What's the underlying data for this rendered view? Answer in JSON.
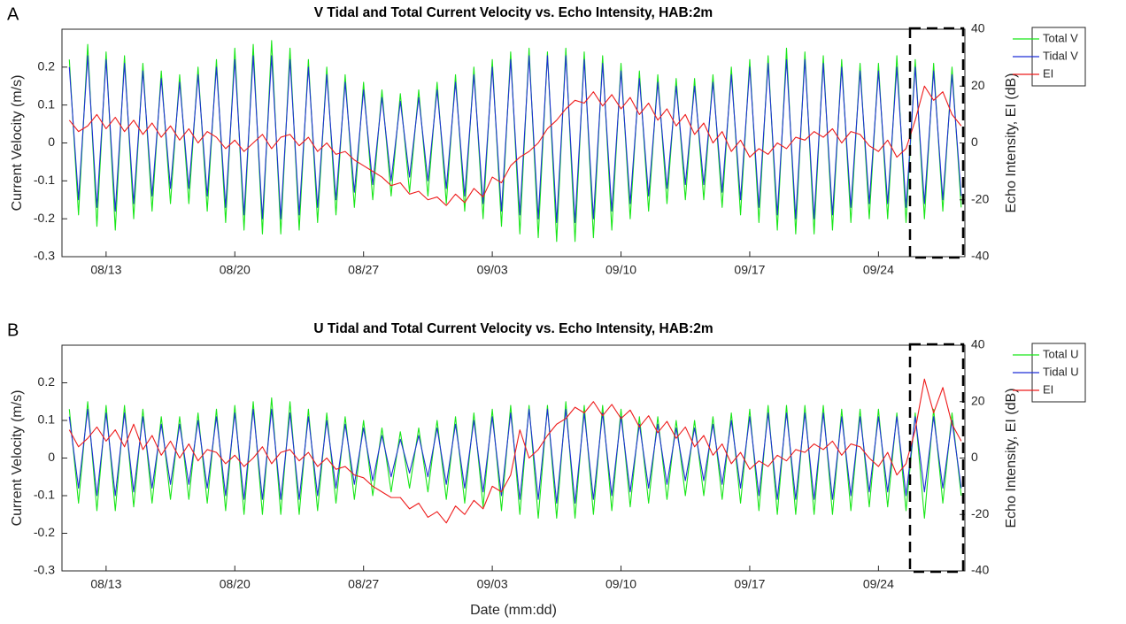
{
  "chart_data": [
    {
      "type": "line",
      "panel": "A",
      "title": "V Tidal and Total Current Velocity vs. Echo Intensity, HAB:2m",
      "ylabel": "Current Velocity (m/s)",
      "y2label": "Echo Intensity, EI (dB)",
      "x": [
        0,
        0.5,
        1,
        1.5,
        2,
        2.5,
        3,
        3.5,
        4,
        4.5,
        5,
        5.5,
        6,
        6.5,
        7,
        7.5,
        8,
        8.5,
        9,
        9.5,
        10,
        10.5,
        11,
        11.5,
        12,
        12.5,
        13,
        13.5,
        14,
        14.5,
        15,
        15.5,
        16,
        16.5,
        17,
        17.5,
        18,
        18.5,
        19,
        19.5,
        20,
        20.5,
        21,
        21.5,
        22,
        22.5,
        23,
        23.5,
        24,
        24.5,
        25,
        25.5,
        26,
        26.5,
        27,
        27.5,
        28,
        28.5,
        29,
        29.5,
        30,
        30.5,
        31,
        31.5,
        32,
        32.5,
        33,
        33.5,
        34,
        34.5,
        35,
        35.5,
        36,
        36.5,
        37,
        37.5,
        38,
        38.5,
        39,
        39.5,
        40,
        40.5,
        41,
        41.5,
        42,
        42.5,
        43,
        43.5,
        44,
        44.5,
        45,
        45.5,
        46,
        46.5,
        47,
        47.5,
        48,
        48.5
      ],
      "xlim": [
        -0.4,
        48.7
      ],
      "xticks": [
        {
          "value": 2,
          "label": "08/13"
        },
        {
          "value": 9,
          "label": "08/20"
        },
        {
          "value": 16,
          "label": "08/27"
        },
        {
          "value": 23,
          "label": "09/03"
        },
        {
          "value": 30,
          "label": "09/10"
        },
        {
          "value": 37,
          "label": "09/17"
        },
        {
          "value": 44,
          "label": "09/24"
        }
      ],
      "ylim": [
        -0.3,
        0.3
      ],
      "yticks": [
        -0.3,
        -0.2,
        -0.1,
        0,
        0.1,
        0.2
      ],
      "y2lim": [
        -40,
        40
      ],
      "y2ticks": [
        -40,
        -20,
        0,
        20,
        40
      ],
      "legend": "outside-right",
      "grid": false,
      "series": [
        {
          "name": "Total V",
          "color": "#19e619",
          "values": [
            0.22,
            -0.19,
            0.26,
            -0.22,
            0.24,
            -0.23,
            0.23,
            -0.2,
            0.21,
            -0.18,
            0.19,
            -0.16,
            0.18,
            -0.16,
            0.2,
            -0.18,
            0.22,
            -0.21,
            0.25,
            -0.23,
            0.26,
            -0.24,
            0.27,
            -0.24,
            0.25,
            -0.23,
            0.22,
            -0.21,
            0.2,
            -0.19,
            0.18,
            -0.17,
            0.16,
            -0.15,
            0.14,
            -0.14,
            0.13,
            -0.13,
            0.14,
            -0.14,
            0.16,
            -0.16,
            0.18,
            -0.18,
            0.2,
            -0.2,
            0.22,
            -0.22,
            0.24,
            -0.24,
            0.25,
            -0.25,
            0.24,
            -0.26,
            0.25,
            -0.26,
            0.24,
            -0.25,
            0.23,
            -0.23,
            0.21,
            -0.2,
            0.19,
            -0.18,
            0.18,
            -0.16,
            0.17,
            -0.15,
            0.17,
            -0.15,
            0.18,
            -0.17,
            0.2,
            -0.19,
            0.22,
            -0.21,
            0.23,
            -0.23,
            0.25,
            -0.24,
            0.24,
            -0.24,
            0.23,
            -0.23,
            0.22,
            -0.21,
            0.21,
            -0.2,
            0.21,
            -0.2,
            0.23,
            -0.21,
            0.22,
            -0.2,
            0.21,
            -0.18,
            0.2,
            -0.17
          ]
        },
        {
          "name": "Tidal V",
          "color": "#1f2fd6",
          "values": [
            0.2,
            -0.15,
            0.23,
            -0.17,
            0.22,
            -0.18,
            0.21,
            -0.16,
            0.19,
            -0.14,
            0.17,
            -0.12,
            0.16,
            -0.12,
            0.18,
            -0.14,
            0.2,
            -0.17,
            0.22,
            -0.19,
            0.23,
            -0.2,
            0.23,
            -0.2,
            0.22,
            -0.19,
            0.2,
            -0.17,
            0.18,
            -0.15,
            0.16,
            -0.13,
            0.14,
            -0.11,
            0.12,
            -0.1,
            0.11,
            -0.09,
            0.12,
            -0.1,
            0.14,
            -0.12,
            0.16,
            -0.14,
            0.18,
            -0.16,
            0.2,
            -0.18,
            0.22,
            -0.19,
            0.23,
            -0.2,
            0.23,
            -0.21,
            0.23,
            -0.21,
            0.22,
            -0.2,
            0.21,
            -0.18,
            0.19,
            -0.16,
            0.17,
            -0.14,
            0.16,
            -0.12,
            0.15,
            -0.11,
            0.15,
            -0.11,
            0.16,
            -0.13,
            0.18,
            -0.15,
            0.2,
            -0.17,
            0.21,
            -0.19,
            0.22,
            -0.2,
            0.22,
            -0.2,
            0.21,
            -0.19,
            0.2,
            -0.17,
            0.19,
            -0.16,
            0.19,
            -0.16,
            0.2,
            -0.17,
            0.2,
            -0.16,
            0.19,
            -0.15,
            0.18,
            -0.14
          ]
        },
        {
          "name": "EI",
          "color": "#ee1c1c",
          "axis": "y2",
          "values": [
            8,
            4,
            6,
            10,
            5,
            9,
            4,
            8,
            3,
            7,
            2,
            6,
            1,
            5,
            0,
            4,
            2,
            -2,
            1,
            -3,
            0,
            3,
            -2,
            2,
            3,
            -1,
            2,
            -3,
            0,
            -4,
            -3,
            -6,
            -8,
            -10,
            -12,
            -15,
            -14,
            -18,
            -17,
            -20,
            -19,
            -22,
            -18,
            -21,
            -16,
            -19,
            -12,
            -14,
            -8,
            -5,
            -3,
            0,
            5,
            8,
            12,
            15,
            14,
            18,
            13,
            17,
            12,
            16,
            10,
            14,
            8,
            12,
            6,
            10,
            3,
            7,
            0,
            4,
            -3,
            1,
            -5,
            -2,
            -4,
            0,
            -2,
            2,
            1,
            4,
            2,
            5,
            0,
            4,
            3,
            -1,
            -3,
            1,
            -5,
            -2,
            8,
            20,
            15,
            18,
            10,
            6
          ]
        }
      ]
    },
    {
      "type": "line",
      "panel": "B",
      "title": "U Tidal and Total Current Velocity vs. Echo Intensity, HAB:2m",
      "xlabel": "Date (mm:dd)",
      "ylabel": "Current Velocity (m/s)",
      "y2label": "Echo Intensity, EI (dB)",
      "x": [
        0,
        0.5,
        1,
        1.5,
        2,
        2.5,
        3,
        3.5,
        4,
        4.5,
        5,
        5.5,
        6,
        6.5,
        7,
        7.5,
        8,
        8.5,
        9,
        9.5,
        10,
        10.5,
        11,
        11.5,
        12,
        12.5,
        13,
        13.5,
        14,
        14.5,
        15,
        15.5,
        16,
        16.5,
        17,
        17.5,
        18,
        18.5,
        19,
        19.5,
        20,
        20.5,
        21,
        21.5,
        22,
        22.5,
        23,
        23.5,
        24,
        24.5,
        25,
        25.5,
        26,
        26.5,
        27,
        27.5,
        28,
        28.5,
        29,
        29.5,
        30,
        30.5,
        31,
        31.5,
        32,
        32.5,
        33,
        33.5,
        34,
        34.5,
        35,
        35.5,
        36,
        36.5,
        37,
        37.5,
        38,
        38.5,
        39,
        39.5,
        40,
        40.5,
        41,
        41.5,
        42,
        42.5,
        43,
        43.5,
        44,
        44.5,
        45,
        45.5,
        46,
        46.5,
        47,
        47.5,
        48,
        48.5
      ],
      "xlim": [
        -0.4,
        48.7
      ],
      "xticks": [
        {
          "value": 2,
          "label": "08/13"
        },
        {
          "value": 9,
          "label": "08/20"
        },
        {
          "value": 16,
          "label": "08/27"
        },
        {
          "value": 23,
          "label": "09/03"
        },
        {
          "value": 30,
          "label": "09/10"
        },
        {
          "value": 37,
          "label": "09/17"
        },
        {
          "value": 44,
          "label": "09/24"
        }
      ],
      "ylim": [
        -0.3,
        0.3
      ],
      "yticks": [
        -0.3,
        -0.2,
        -0.1,
        0,
        0.1,
        0.2
      ],
      "y2lim": [
        -40,
        40
      ],
      "y2ticks": [
        -40,
        -20,
        0,
        20,
        40
      ],
      "legend": "outside-right",
      "grid": false,
      "series": [
        {
          "name": "Total U",
          "color": "#19e619",
          "values": [
            0.13,
            -0.12,
            0.15,
            -0.14,
            0.14,
            -0.14,
            0.14,
            -0.13,
            0.13,
            -0.12,
            0.11,
            -0.11,
            0.11,
            -0.11,
            0.12,
            -0.12,
            0.13,
            -0.14,
            0.14,
            -0.15,
            0.15,
            -0.15,
            0.16,
            -0.15,
            0.15,
            -0.15,
            0.13,
            -0.14,
            0.12,
            -0.12,
            0.11,
            -0.11,
            0.1,
            -0.1,
            0.08,
            -0.09,
            0.07,
            -0.08,
            0.08,
            -0.09,
            0.1,
            -0.11,
            0.11,
            -0.12,
            0.12,
            -0.13,
            0.13,
            -0.14,
            0.14,
            -0.15,
            0.14,
            -0.16,
            0.14,
            -0.16,
            0.15,
            -0.16,
            0.14,
            -0.15,
            0.14,
            -0.14,
            0.13,
            -0.13,
            0.11,
            -0.12,
            0.11,
            -0.11,
            0.1,
            -0.1,
            0.1,
            -0.1,
            0.11,
            -0.11,
            0.12,
            -0.12,
            0.13,
            -0.14,
            0.14,
            -0.15,
            0.14,
            -0.15,
            0.14,
            -0.15,
            0.14,
            -0.15,
            0.13,
            -0.14,
            0.13,
            -0.13,
            0.13,
            -0.13,
            0.12,
            -0.14,
            0.12,
            -0.16,
            0.13,
            -0.12,
            0.12,
            -0.1
          ]
        },
        {
          "name": "Tidal U",
          "color": "#1f2fd6",
          "values": [
            0.11,
            -0.08,
            0.13,
            -0.1,
            0.12,
            -0.1,
            0.12,
            -0.09,
            0.11,
            -0.08,
            0.09,
            -0.07,
            0.09,
            -0.07,
            0.1,
            -0.08,
            0.11,
            -0.1,
            0.12,
            -0.11,
            0.13,
            -0.11,
            0.13,
            -0.11,
            0.12,
            -0.11,
            0.11,
            -0.1,
            0.1,
            -0.08,
            0.09,
            -0.07,
            0.08,
            -0.06,
            0.06,
            -0.05,
            0.05,
            -0.04,
            0.06,
            -0.05,
            0.08,
            -0.07,
            0.09,
            -0.08,
            0.1,
            -0.09,
            0.11,
            -0.1,
            0.12,
            -0.11,
            0.13,
            -0.11,
            0.13,
            -0.12,
            0.13,
            -0.12,
            0.12,
            -0.11,
            0.12,
            -0.1,
            0.11,
            -0.09,
            0.09,
            -0.08,
            0.09,
            -0.07,
            0.08,
            -0.06,
            0.08,
            -0.06,
            0.09,
            -0.07,
            0.1,
            -0.08,
            0.11,
            -0.1,
            0.12,
            -0.11,
            0.12,
            -0.11,
            0.12,
            -0.11,
            0.12,
            -0.11,
            0.11,
            -0.1,
            0.11,
            -0.09,
            0.11,
            -0.09,
            0.11,
            -0.1,
            0.11,
            -0.09,
            0.11,
            -0.08,
            0.1,
            -0.08
          ]
        },
        {
          "name": "EI",
          "color": "#ee1c1c",
          "axis": "y2",
          "values": [
            10,
            4,
            7,
            11,
            6,
            10,
            4,
            12,
            3,
            8,
            1,
            6,
            0,
            5,
            -1,
            3,
            2,
            -2,
            1,
            -3,
            0,
            4,
            -2,
            2,
            3,
            -1,
            2,
            -3,
            0,
            -4,
            -3,
            -6,
            -7,
            -10,
            -12,
            -14,
            -14,
            -18,
            -16,
            -21,
            -19,
            -23,
            -17,
            -20,
            -15,
            -18,
            -10,
            -12,
            -6,
            10,
            0,
            3,
            8,
            12,
            14,
            18,
            16,
            20,
            15,
            19,
            14,
            17,
            11,
            15,
            9,
            13,
            7,
            11,
            4,
            8,
            1,
            5,
            -2,
            2,
            -4,
            -1,
            -3,
            1,
            -1,
            3,
            2,
            5,
            3,
            6,
            1,
            5,
            4,
            0,
            -3,
            2,
            -6,
            -2,
            10,
            28,
            16,
            25,
            12,
            6
          ]
        }
      ]
    }
  ]
}
